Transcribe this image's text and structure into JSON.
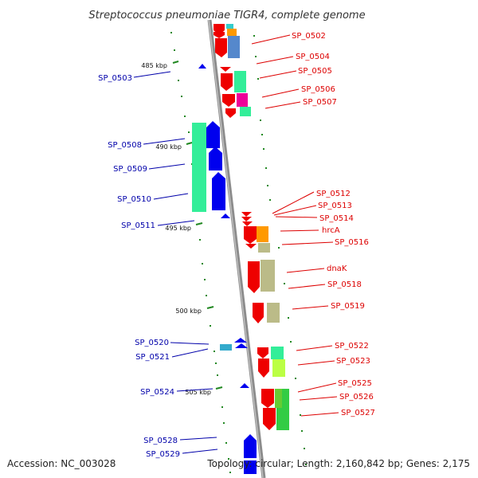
{
  "title": "Streptococcus pneumoniae TIGR4, complete genome",
  "footer": {
    "accession": "Accession: NC_003028",
    "info": "Topology: circular; Length: 2,160,842 bp; Genes: 2,175"
  },
  "colors": {
    "backbone": "#8c8c8c",
    "forward_gene": "#ee0000",
    "reverse_gene": "#0000ee",
    "right_label": "#dd0000",
    "left_label": "#0000aa",
    "tick": "#228822"
  },
  "ticks": [
    {
      "label": "485 kbp"
    },
    {
      "label": "490 kbp"
    },
    {
      "label": "495 kbp"
    },
    {
      "label": "500 kbp"
    },
    {
      "label": "505 kbp"
    }
  ],
  "right_genes": [
    {
      "label": "SP_0502"
    },
    {
      "label": "SP_0504"
    },
    {
      "label": "SP_0505"
    },
    {
      "label": "SP_0506"
    },
    {
      "label": "SP_0507"
    },
    {
      "label": "SP_0512"
    },
    {
      "label": "SP_0513"
    },
    {
      "label": "SP_0514"
    },
    {
      "label": "hrcA"
    },
    {
      "label": "SP_0516"
    },
    {
      "label": "dnaK"
    },
    {
      "label": "SP_0518"
    },
    {
      "label": "SP_0519"
    },
    {
      "label": "SP_0522"
    },
    {
      "label": "SP_0523"
    },
    {
      "label": "SP_0525"
    },
    {
      "label": "SP_0526"
    },
    {
      "label": "SP_0527"
    }
  ],
  "left_genes": [
    {
      "label": "SP_0503"
    },
    {
      "label": "SP_0508"
    },
    {
      "label": "SP_0509"
    },
    {
      "label": "SP_0510"
    },
    {
      "label": "SP_0511"
    },
    {
      "label": "SP_0520"
    },
    {
      "label": "SP_0521"
    },
    {
      "label": "SP_0524"
    },
    {
      "label": "SP_0528"
    },
    {
      "label": "SP_0529"
    }
  ]
}
